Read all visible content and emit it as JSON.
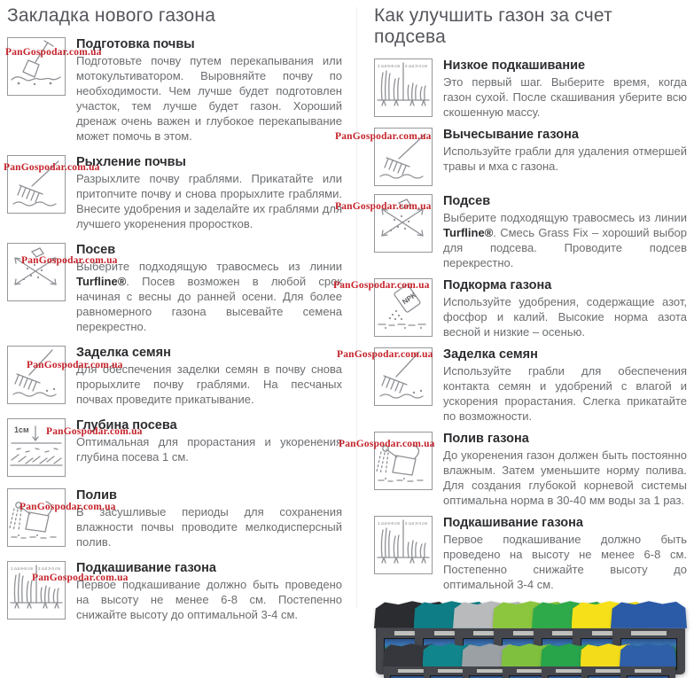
{
  "watermark": {
    "text": "PanGospodar.com.ua",
    "color": "#c5232b"
  },
  "left": {
    "title": "Закладка нового газона",
    "steps": [
      {
        "title": "Подготовка почвы",
        "body": "Подготовьте почву путем перекапывания или мотокультиватором. Выровняйте почву по необходимости. Чем лучше будет подготовлен участок, тем лучше будет газон. Хороший дренаж очень важен и глубокое перекапывание может помочь в этом."
      },
      {
        "title": "Рыхление почвы",
        "body": "Разрыхлите почву граблями. Прикатайте или притопчите почву и снова прорыхлите граблями. Внесите удобрения и заделайте их граблями для лучшего укоренения проростков."
      },
      {
        "title": "Посев",
        "body_pre": "Выберите подходящую травосмесь из линии ",
        "body_bold": "Turfline®",
        "body_post": ". Посев возможен в любой срок начиная с весны до ранней осени. Для более равномерного газона высевайте семена перекрестно."
      },
      {
        "title": "Заделка семян",
        "body": "Для обеспечения заделки семян в почву снова прорыхлите почву граблями. На песчаных почвах проведите прикатывание."
      },
      {
        "title": "Глубина посева",
        "body": "Оптимальная для прорастания и укоренения глубина посева 1 см."
      },
      {
        "title": "Полив",
        "body": "В засушливые периоды для сохранения влажности почвы проводите мелкодисперсный полив."
      },
      {
        "title": "Подкашивание газона",
        "body": "Первое подкашивание должно быть проведено на высоту не менее 6-8 см. Постепенно снижайте высоту до оптимальной 3-4 см."
      }
    ]
  },
  "right": {
    "title": "Как улучшить газон за счет подсева",
    "steps": [
      {
        "title": "Низкое подкашивание",
        "body": "Это первый шаг. Выберите время, когда газон сухой. После скашивания уберите всю скошенную массу."
      },
      {
        "title": "Вычесывание газона",
        "body": "Используйте грабли для удаления отмершей травы и мха с газона."
      },
      {
        "title": "Подсев",
        "body_pre": "Выберите подходящую травосмесь из линии ",
        "body_bold": "Turfline®",
        "body_post": ". Смесь Grass Fix – хороший выбор для подсева. Проводите подсев перекрестно."
      },
      {
        "title": "Подкорма газона",
        "body": "Используйте удобрения, содержащие азот, фосфор и калий. Высокие норма азота весной и низкие – осенью."
      },
      {
        "title": "Заделка семян",
        "body": "Используйте грабли для обеспечения контакта семян и удобрений с влагой и ускорения прорастания. Слегка прикатайте по возможности."
      },
      {
        "title": "Полив газона",
        "body": "До укоренения газон должен быть постоянно влажным. Затем уменьшите норму полива. Для создания глубокой корневой системы оптимальна норма в 30-40 мм воды за 1 раз."
      },
      {
        "title": "Подкашивание газона",
        "body": "Первое подкашивание должно быть проведено на высоту не менее 6-8 см. Постепенно снижайте высоту до оптимальной 3-4 см."
      }
    ]
  },
  "icons": {
    "depth_label": "1см",
    "npk_label": "NPK",
    "mow_label_1": "1 cut 6-8 cm",
    "mow_label_2": "2 cut 3-4 cm"
  },
  "products": {
    "back_row": [
      "#2b2c30",
      "#0f7d85",
      "#b8babc",
      "#8cc63e",
      "#2faa4b",
      "#f6e019",
      "#2b5aa7"
    ],
    "front_row": [
      "#36373c",
      "#11858c",
      "#9aa0a4",
      "#7fc03f",
      "#28a44a",
      "#f3dc1a",
      "#2e5fa8"
    ]
  }
}
